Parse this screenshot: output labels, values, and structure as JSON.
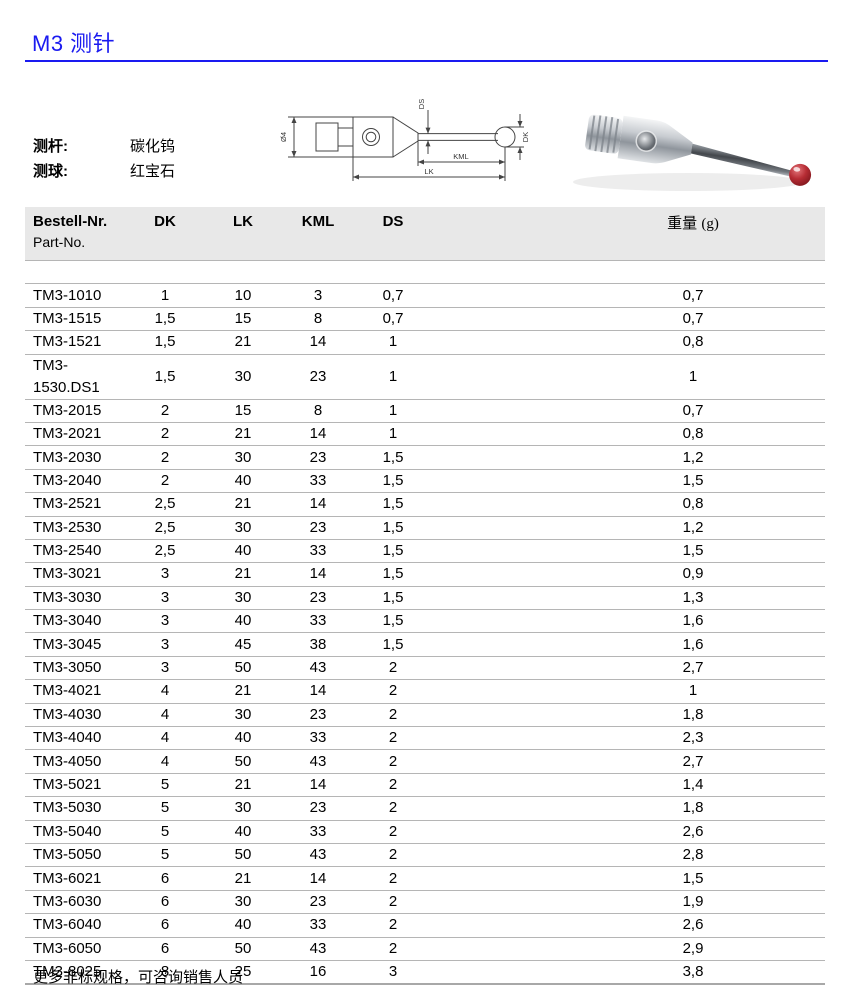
{
  "page": {
    "title": "M3 测针",
    "accent_color": "#1a1af0",
    "footer_note": "更多非标规格，可咨询销售人员"
  },
  "specs": {
    "shaft_label": "测杆:",
    "shaft_value": "碳化钨",
    "ball_label": "测球:",
    "ball_value": "红宝石"
  },
  "diagram_labels": {
    "diameter": "Ø4",
    "ds": "DS",
    "dk": "DK",
    "kml": "KML",
    "lk": "LK"
  },
  "photo_colors": {
    "metal": "#c7cbd0",
    "ruby": "#a9232b"
  },
  "table": {
    "header": {
      "order_no": "Bestell-Nr.",
      "part_no": "Part-No.",
      "dk": "DK",
      "lk": "LK",
      "kml": "KML",
      "ds": "DS",
      "weight_cn": "重量 ",
      "weight_unit": "(g)"
    },
    "rows": [
      [
        "TM3-1010",
        "1",
        "10",
        "3",
        "0,7",
        "0,7"
      ],
      [
        "TM3-1515",
        "1,5",
        "15",
        "8",
        "0,7",
        "0,7"
      ],
      [
        "TM3-1521",
        "1,5",
        "21",
        "14",
        "1",
        "0,8"
      ],
      [
        "TM3-1530.DS1",
        "1,5",
        "30",
        "23",
        "1",
        "1"
      ],
      [
        "TM3-2015",
        "2",
        "15",
        "8",
        "1",
        "0,7"
      ],
      [
        "TM3-2021",
        "2",
        "21",
        "14",
        "1",
        "0,8"
      ],
      [
        "TM3-2030",
        "2",
        "30",
        "23",
        "1,5",
        "1,2"
      ],
      [
        "TM3-2040",
        "2",
        "40",
        "33",
        "1,5",
        "1,5"
      ],
      [
        "TM3-2521",
        "2,5",
        "21",
        "14",
        "1,5",
        "0,8"
      ],
      [
        "TM3-2530",
        "2,5",
        "30",
        "23",
        "1,5",
        "1,2"
      ],
      [
        "TM3-2540",
        "2,5",
        "40",
        "33",
        "1,5",
        "1,5"
      ],
      [
        "TM3-3021",
        "3",
        "21",
        "14",
        "1,5",
        "0,9"
      ],
      [
        "TM3-3030",
        "3",
        "30",
        "23",
        "1,5",
        "1,3"
      ],
      [
        "TM3-3040",
        "3",
        "40",
        "33",
        "1,5",
        "1,6"
      ],
      [
        "TM3-3045",
        "3",
        "45",
        "38",
        "1,5",
        "1,6"
      ],
      [
        "TM3-3050",
        "3",
        "50",
        "43",
        "2",
        "2,7"
      ],
      [
        "TM3-4021",
        "4",
        "21",
        "14",
        "2",
        "1"
      ],
      [
        "TM3-4030",
        "4",
        "30",
        "23",
        "2",
        "1,8"
      ],
      [
        "TM3-4040",
        "4",
        "40",
        "33",
        "2",
        "2,3"
      ],
      [
        "TM3-4050",
        "4",
        "50",
        "43",
        "2",
        "2,7"
      ],
      [
        "TM3-5021",
        "5",
        "21",
        "14",
        "2",
        "1,4"
      ],
      [
        "TM3-5030",
        "5",
        "30",
        "23",
        "2",
        "1,8"
      ],
      [
        "TM3-5040",
        "5",
        "40",
        "33",
        "2",
        "2,6"
      ],
      [
        "TM3-5050",
        "5",
        "50",
        "43",
        "2",
        "2,8"
      ],
      [
        "TM3-6021",
        "6",
        "21",
        "14",
        "2",
        "1,5"
      ],
      [
        "TM3-6030",
        "6",
        "30",
        "23",
        "2",
        "1,9"
      ],
      [
        "TM3-6040",
        "6",
        "40",
        "33",
        "2",
        "2,6"
      ],
      [
        "TM3-6050",
        "6",
        "50",
        "43",
        "2",
        "2,9"
      ],
      [
        "TM3-8025",
        "8",
        "25",
        "16",
        "3",
        "3,8"
      ]
    ]
  }
}
